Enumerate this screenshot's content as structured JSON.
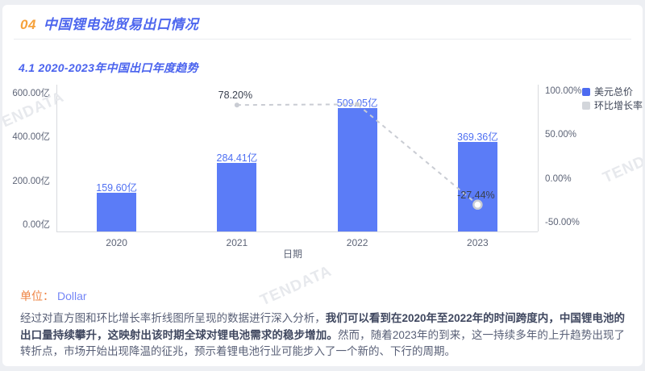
{
  "header": {
    "number": "04",
    "title": "中国锂电池贸易出口情况"
  },
  "subsection_title": "4.1 2020-2023年中国出口年度趋势",
  "unit": {
    "label": "单位：",
    "value": "Dollar"
  },
  "analysis": {
    "lead": "经过对直方图和环比增长率折线图所呈现的数据进行深入分析，",
    "highlight": "我们可以看到在2020年至2022年的时间跨度内，中国锂电池的出口量持续攀升，这映射出该时期全球对锂电池需求的稳步增加。",
    "rest": "然而，随着2023年的到来，这一持续多年的上升趋势出现了转折点，市场开始出现降温的征兆，预示着锂电池行业可能步入了一个新的、下行的周期。"
  },
  "watermark_text": "TENDATA",
  "chart_data": {
    "type": "bar",
    "combo": "bar+line",
    "categories": [
      "2020",
      "2021",
      "2022",
      "2023"
    ],
    "series": [
      {
        "name": "美元总价",
        "type": "bar",
        "unit": "亿",
        "values": [
          159.6,
          284.41,
          509.05,
          369.36
        ],
        "data_labels": [
          "159.60亿",
          "284.41亿",
          "509.05亿",
          "369.36亿"
        ],
        "color": "#5b7cf7"
      },
      {
        "name": "环比增长率",
        "type": "line",
        "unit": "%",
        "style": "dashed",
        "values": [
          null,
          78.2,
          78.98,
          -27.44
        ],
        "data_labels": [
          "",
          "78.20%",
          "",
          "-27.44%"
        ],
        "color": "#c9ccd3"
      }
    ],
    "xlabel": "日期",
    "left_axis_ticks": [
      "600.00亿",
      "400.00亿",
      "200.00亿",
      "0.00亿"
    ],
    "right_axis_ticks": [
      "100.00%",
      "50.00%",
      "0.00%",
      "-50.00%"
    ],
    "left_axis_range": [
      0,
      600
    ],
    "right_axis_range": [
      -50,
      100
    ],
    "grid": false,
    "legend_position": "top-right",
    "legend": [
      {
        "label": "美元总价",
        "marker_color": "#4d6bf0"
      },
      {
        "label": "环比增长率",
        "marker_color": "#d3d6db"
      }
    ]
  }
}
